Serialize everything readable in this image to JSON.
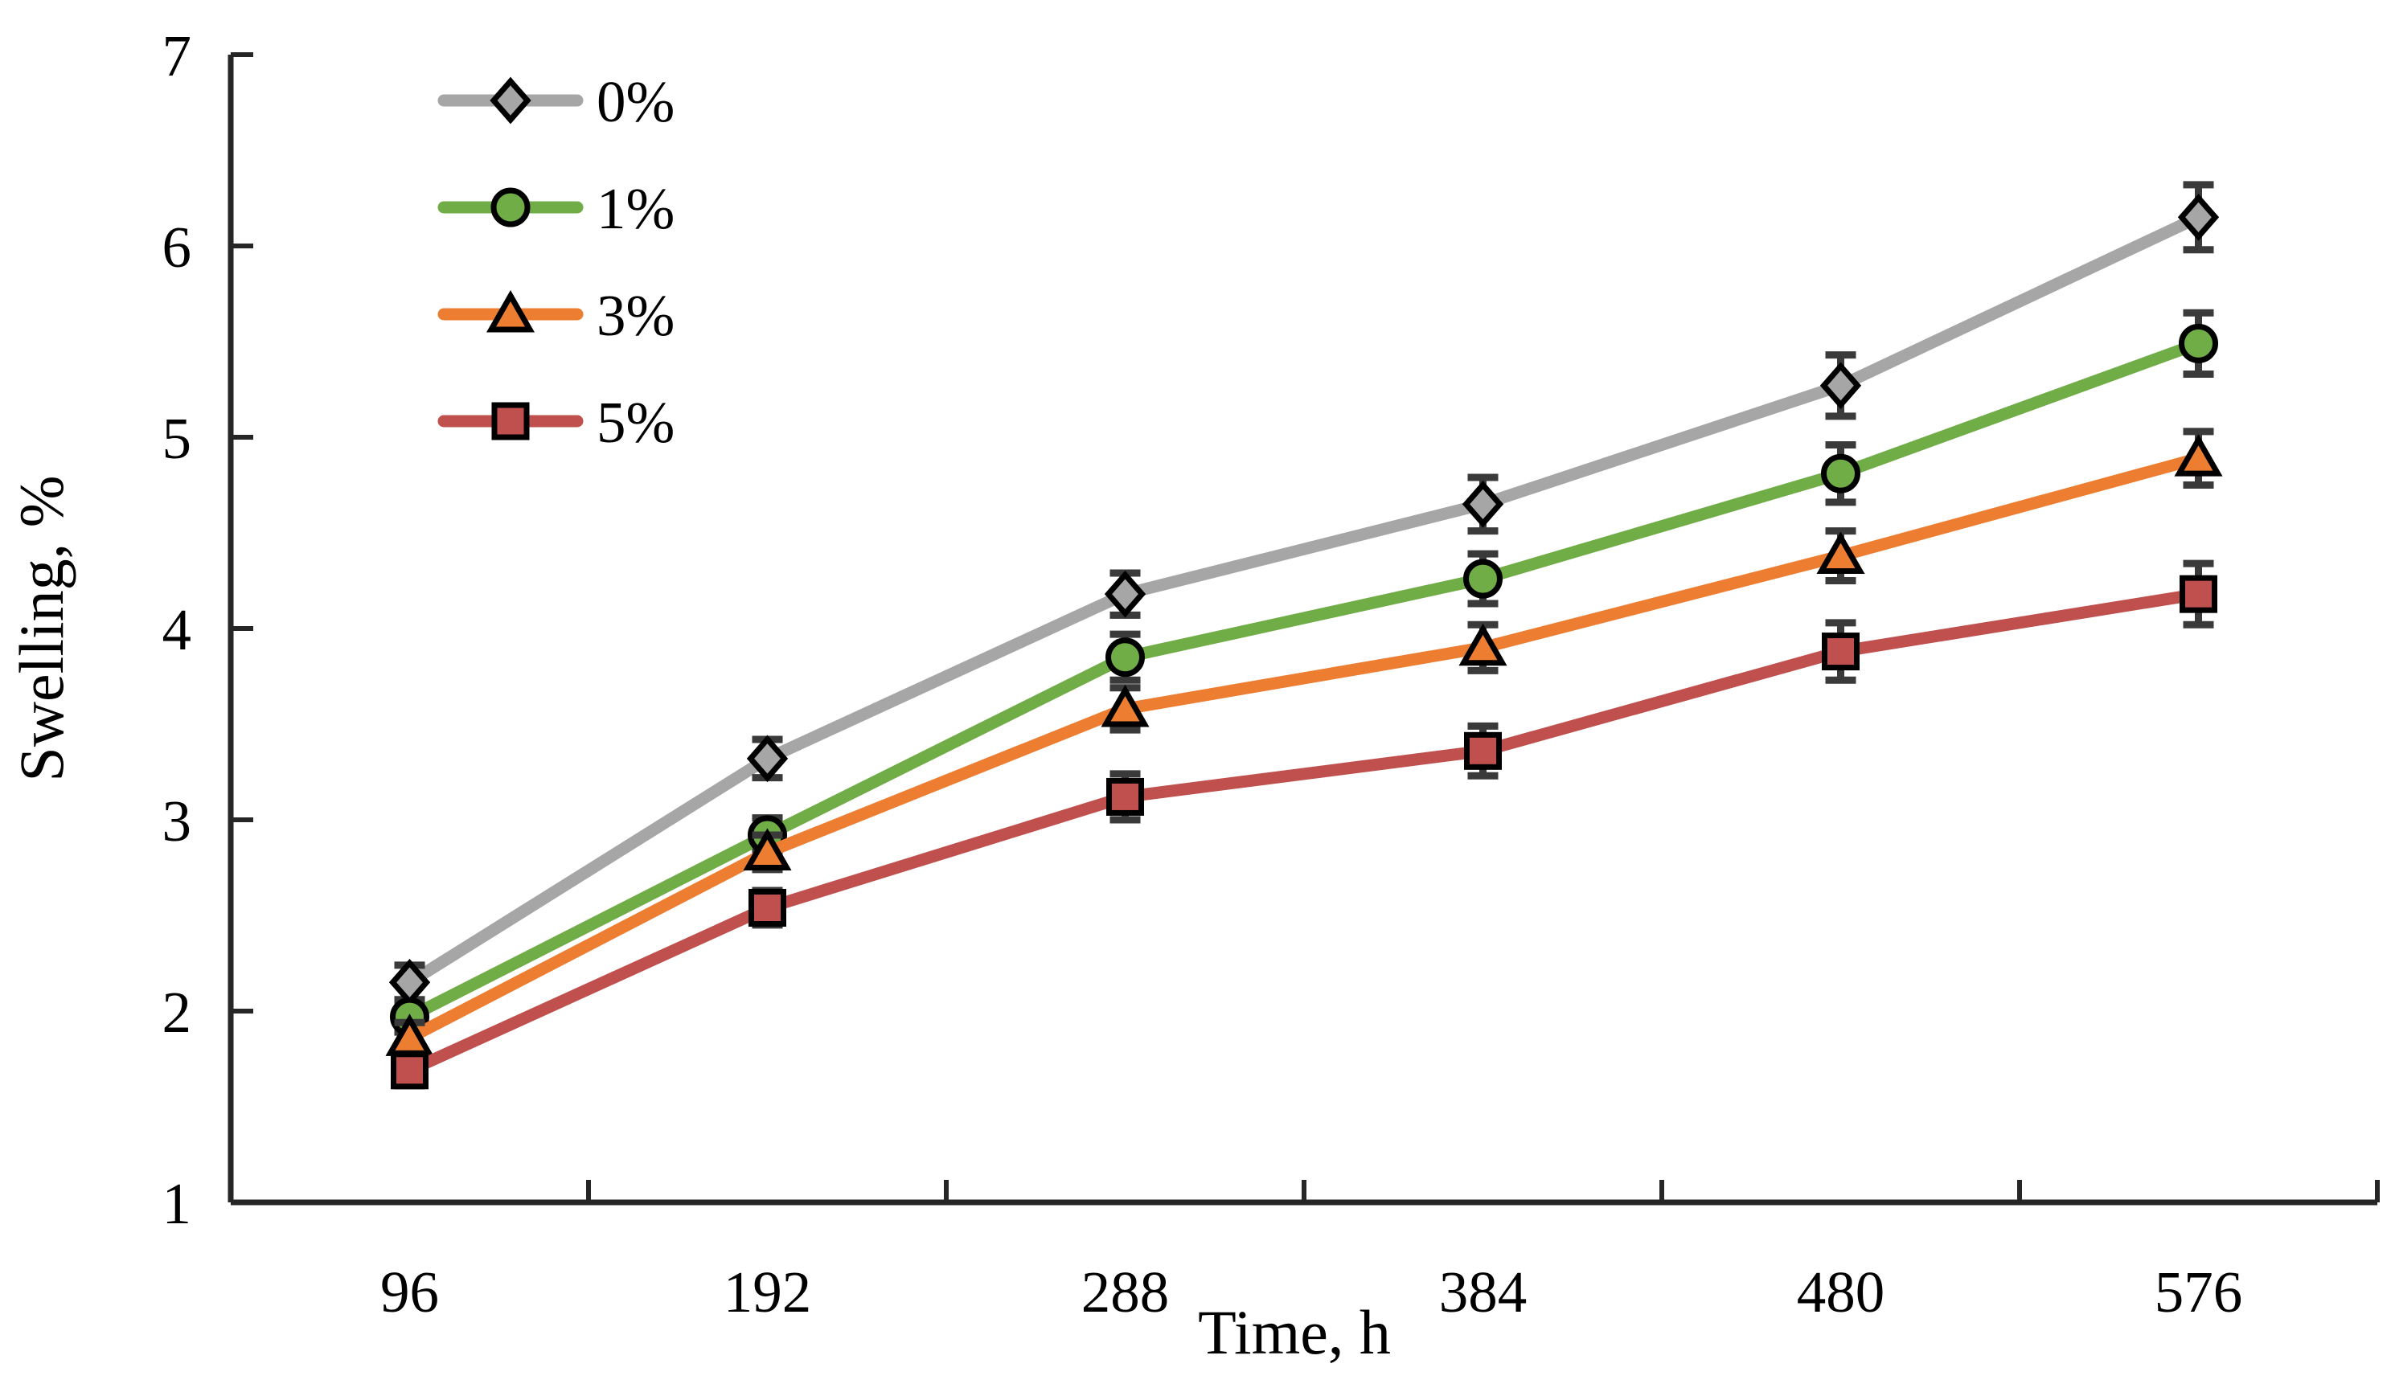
{
  "chart_data": {
    "type": "line",
    "title": "",
    "xlabel": "Time, h",
    "ylabel": "Swelling, %",
    "categories": [
      96,
      192,
      288,
      384,
      480,
      576
    ],
    "ylim": [
      1,
      7
    ],
    "yticks": [
      1,
      2,
      3,
      4,
      5,
      6,
      7
    ],
    "grid": false,
    "legend_position": "top-left-inside",
    "legend_entries": [
      "0%",
      "1%",
      "3%",
      "5%"
    ],
    "error_bars": true,
    "axis_color": "#262626",
    "errorbar_color": "#3a3a3a",
    "marker_outline": "#000000",
    "series": [
      {
        "name": "0%",
        "marker": "diamond",
        "color": "#a6a6a6",
        "values": [
          2.15,
          3.32,
          4.18,
          4.65,
          5.27,
          6.15
        ],
        "errors": [
          0.09,
          0.1,
          0.11,
          0.14,
          0.16,
          0.17
        ]
      },
      {
        "name": "1%",
        "marker": "circle",
        "color": "#70ad47",
        "values": [
          1.97,
          2.92,
          3.85,
          4.26,
          4.81,
          5.49
        ],
        "errors": [
          0.08,
          0.09,
          0.12,
          0.13,
          0.15,
          0.16
        ]
      },
      {
        "name": "3%",
        "marker": "triangle",
        "color": "#ed7d31",
        "values": [
          1.86,
          2.83,
          3.58,
          3.9,
          4.38,
          4.89
        ],
        "errors": [
          0.08,
          0.09,
          0.11,
          0.12,
          0.13,
          0.14
        ]
      },
      {
        "name": "5%",
        "marker": "square",
        "color": "#c0504d",
        "values": [
          1.69,
          2.54,
          3.12,
          3.36,
          3.88,
          4.18
        ],
        "errors": [
          0.08,
          0.09,
          0.12,
          0.13,
          0.15,
          0.16
        ]
      }
    ]
  }
}
